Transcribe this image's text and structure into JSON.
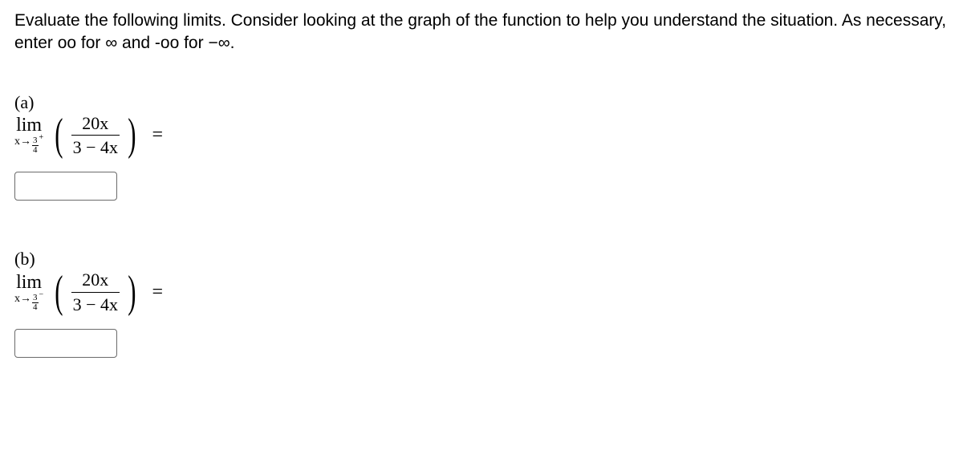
{
  "instructions": "Evaluate the following limits. Consider looking at the graph of the function to help you understand the situation. As necessary, enter oo for ∞ and -oo for −∞.",
  "parts": {
    "a": {
      "label": "(a)",
      "lim_text": "lim",
      "approach_var": "x→",
      "approach_frac_num": "3",
      "approach_frac_den": "4",
      "side": "+",
      "lparen": "(",
      "rparen": ")",
      "numerator": "20x",
      "denominator": "3 − 4x",
      "equals": "=",
      "answer": ""
    },
    "b": {
      "label": "(b)",
      "lim_text": "lim",
      "approach_var": "x→",
      "approach_frac_num": "3",
      "approach_frac_den": "4",
      "side": "−",
      "lparen": "(",
      "rparen": ")",
      "numerator": "20x",
      "denominator": "3 − 4x",
      "equals": "=",
      "answer": ""
    }
  },
  "colors": {
    "text": "#000000",
    "background": "#ffffff",
    "input_border": "#6b6b6b"
  }
}
